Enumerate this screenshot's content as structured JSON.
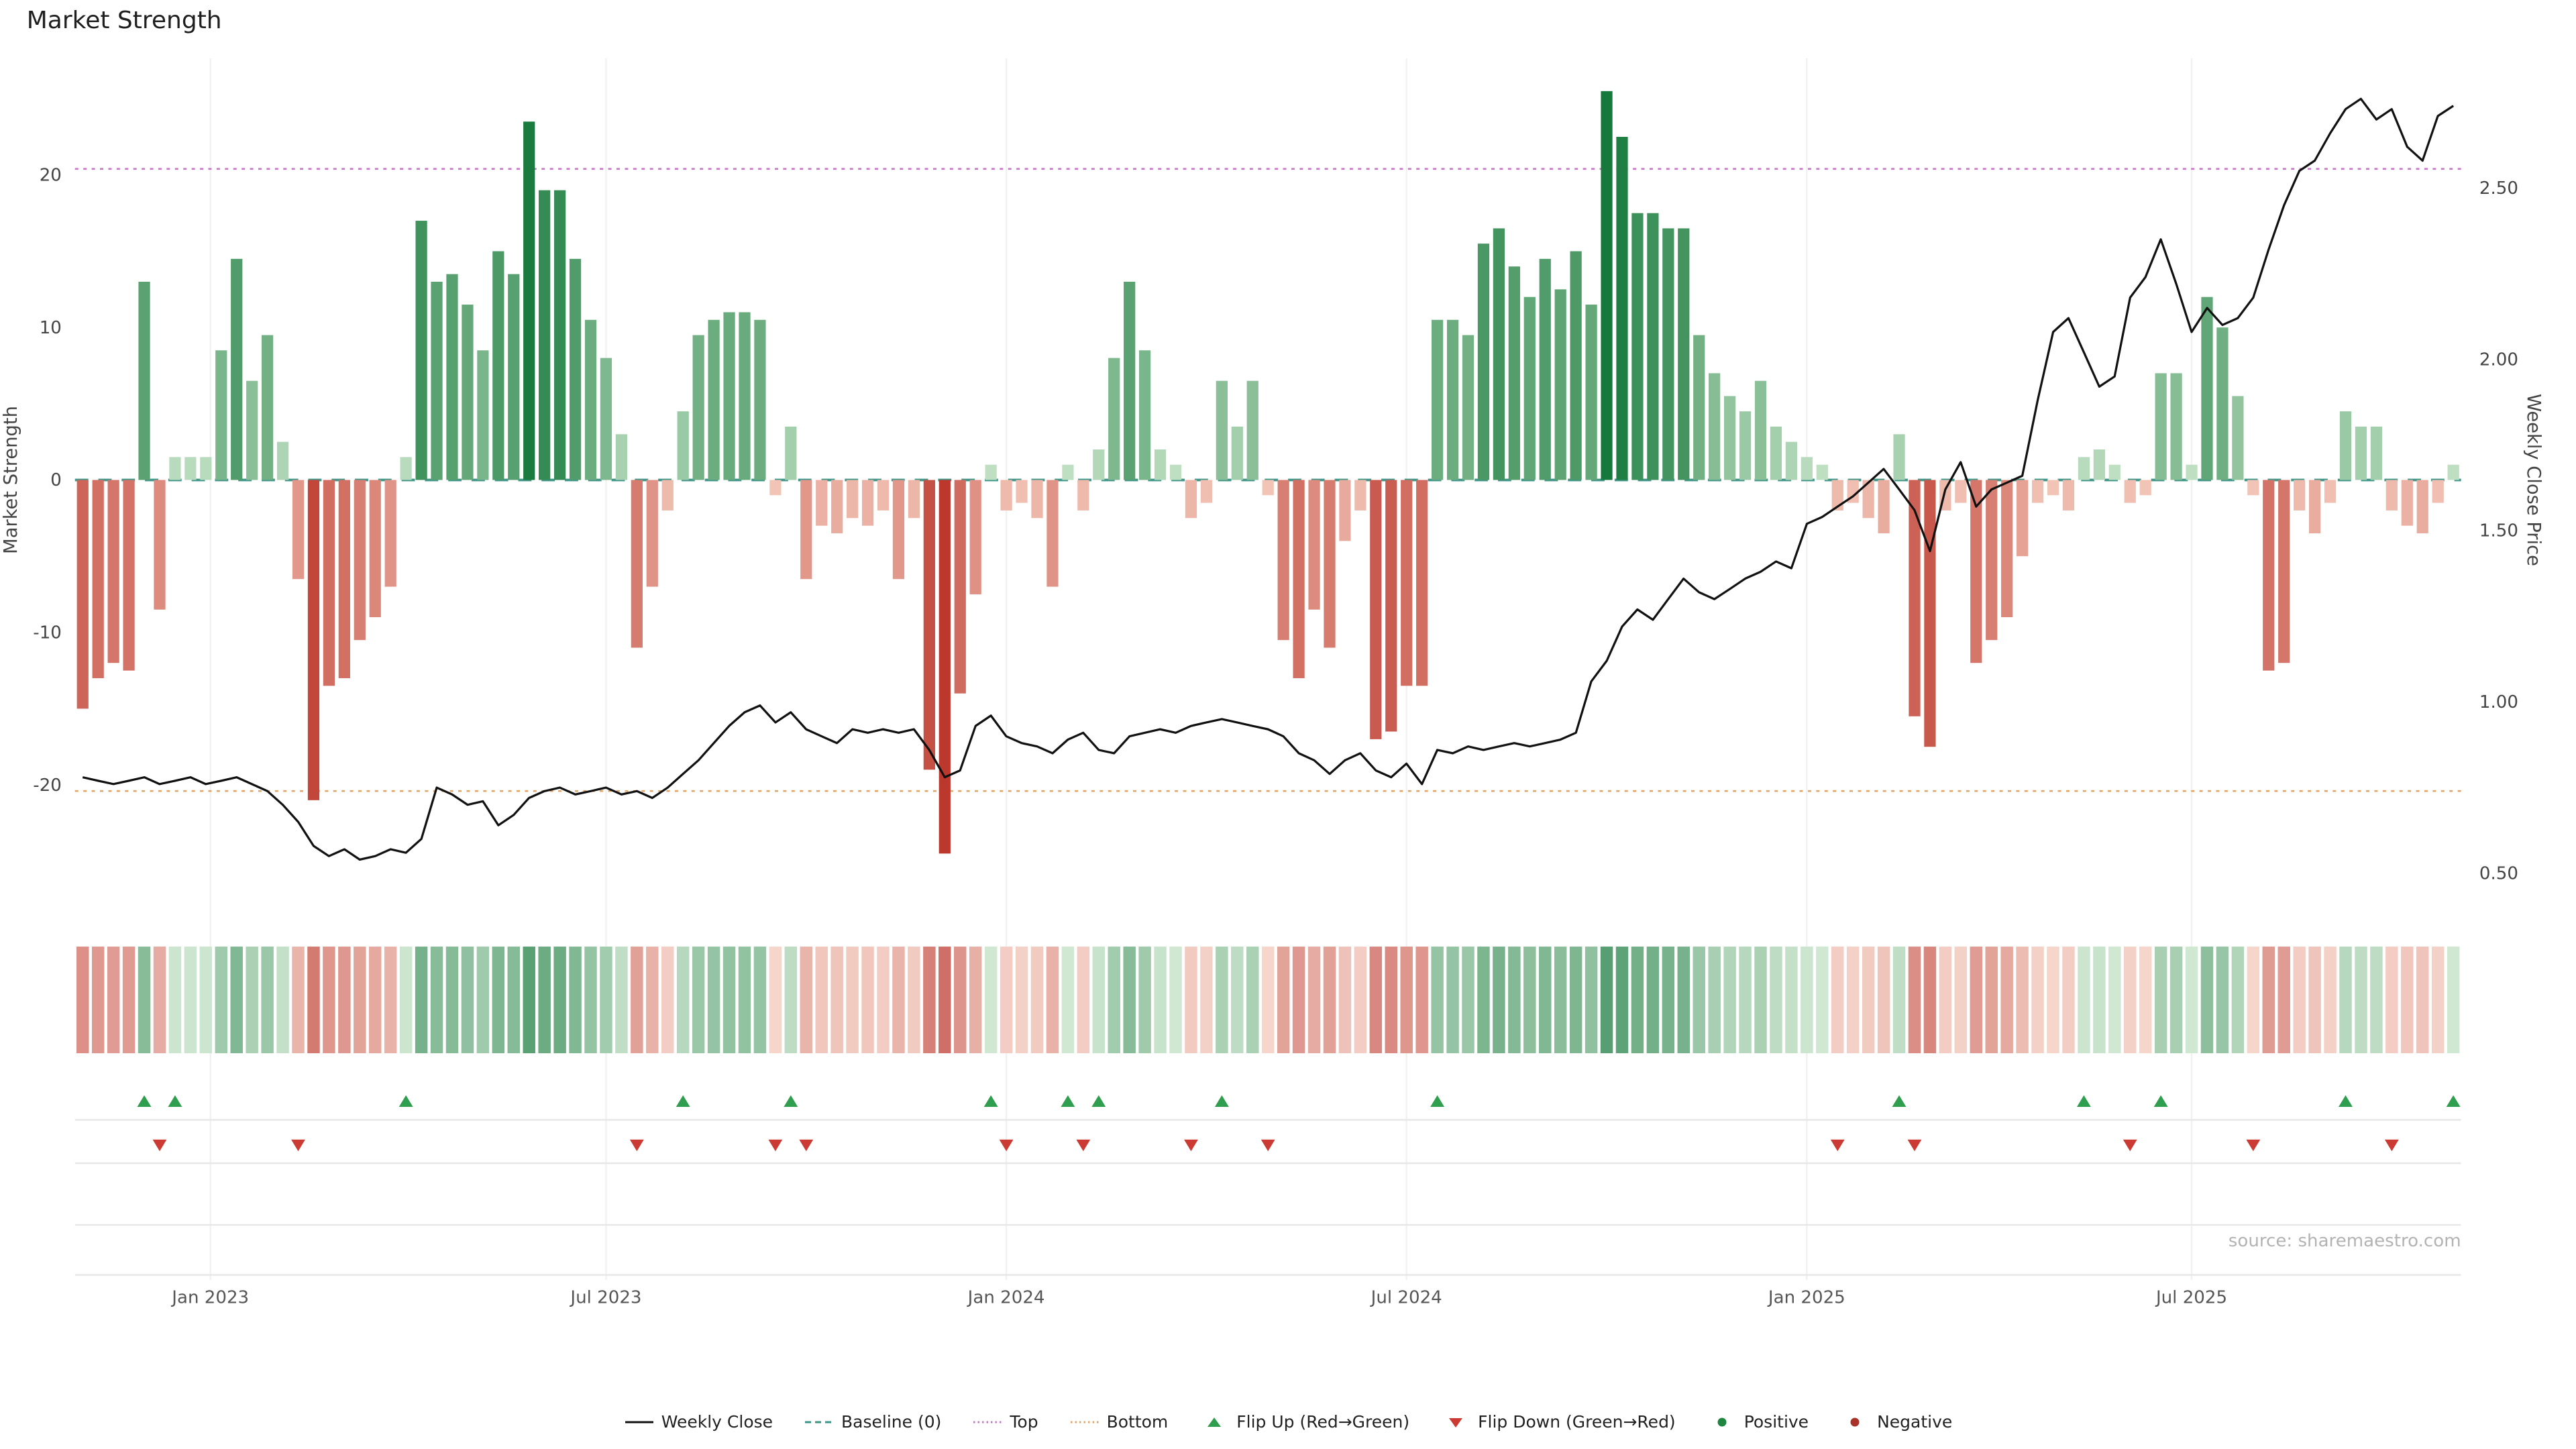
{
  "title": "Market Strength",
  "source_note": "source: sharemaestro.com",
  "chart_data": {
    "type": "bar+line",
    "title": "Market Strength",
    "x_unit": "week",
    "x_range": [
      "Nov 2022",
      "Oct 2025"
    ],
    "x_ticks": [
      {
        "label": "Jan 2023",
        "index": 8.3
      },
      {
        "label": "Jul 2023",
        "index": 34
      },
      {
        "label": "Jan 2024",
        "index": 60
      },
      {
        "label": "Jul 2024",
        "index": 86
      },
      {
        "label": "Jan 2025",
        "index": 112
      },
      {
        "label": "Jul 2025",
        "index": 137
      }
    ],
    "left_axis": {
      "label": "Market Strength",
      "ticks": [
        20,
        10,
        0,
        -10,
        -20
      ],
      "range": [
        -27.5,
        27.7
      ]
    },
    "right_axis": {
      "label": "Weekly Close Price",
      "ticks": [
        "2.50",
        "2.00",
        "1.50",
        "1.00",
        "0.50"
      ],
      "range": [
        0.42,
        2.88
      ]
    },
    "reference_lines": {
      "baseline": 0,
      "top": 20.4,
      "bottom": -20.4
    },
    "series": [
      {
        "name": "Market Strength",
        "type": "bar",
        "values": [
          -15,
          -13,
          -12,
          -12.5,
          13,
          -8.5,
          1.5,
          1.5,
          1.5,
          8.5,
          14.5,
          6.5,
          9.5,
          2.5,
          -6.5,
          -21,
          -13.5,
          -13,
          -10.5,
          -9,
          -7,
          1.5,
          17,
          13,
          13.5,
          11.5,
          8.5,
          15,
          13.5,
          23.5,
          19,
          19,
          14.5,
          10.5,
          8,
          3,
          -11,
          -7,
          -2,
          4.5,
          9.5,
          10.5,
          11,
          11,
          10.5,
          -1,
          3.5,
          -6.5,
          -3,
          -3.5,
          -2.5,
          -3,
          -2,
          -6.5,
          -2.5,
          -19,
          -24.5,
          -14,
          -7.5,
          1,
          -2,
          -1.5,
          -2.5,
          -7,
          1,
          -2,
          2,
          8,
          13,
          8.5,
          2,
          1,
          -2.5,
          -1.5,
          6.5,
          3.5,
          6.5,
          -1,
          -10.5,
          -13,
          -8.5,
          -11,
          -4,
          -2,
          -17,
          -16.5,
          -13.5,
          -13.5,
          10.5,
          10.5,
          9.5,
          15.5,
          16.5,
          14,
          12,
          14.5,
          12.5,
          15,
          11.5,
          25.5,
          22.5,
          17.5,
          17.5,
          16.5,
          16.5,
          9.5,
          7,
          5.5,
          4.5,
          6.5,
          3.5,
          2.5,
          1.5,
          1,
          -2,
          -1.5,
          -2.5,
          -3.5,
          3,
          -15.5,
          -17.5,
          -2,
          -1.5,
          -12,
          -10.5,
          -9,
          -5,
          -1.5,
          -1,
          -2,
          1.5,
          2,
          1,
          -1.5,
          -1,
          7,
          7,
          1,
          12,
          10,
          5.5,
          -1,
          -12.5,
          -12,
          -2,
          -3.5,
          -1.5,
          4.5,
          3.5,
          3.5,
          -2,
          -3,
          -3.5,
          -1.5,
          1
        ]
      },
      {
        "name": "Weekly Close",
        "type": "line",
        "values": [
          0.78,
          0.77,
          0.76,
          0.77,
          0.78,
          0.76,
          0.77,
          0.78,
          0.76,
          0.77,
          0.78,
          0.76,
          0.74,
          0.7,
          0.65,
          0.58,
          0.55,
          0.57,
          0.54,
          0.55,
          0.57,
          0.56,
          0.6,
          0.75,
          0.73,
          0.7,
          0.71,
          0.64,
          0.67,
          0.72,
          0.74,
          0.75,
          0.73,
          0.74,
          0.75,
          0.73,
          0.74,
          0.72,
          0.75,
          0.79,
          0.83,
          0.88,
          0.93,
          0.97,
          0.99,
          0.94,
          0.97,
          0.92,
          0.9,
          0.88,
          0.92,
          0.91,
          0.92,
          0.91,
          0.92,
          0.86,
          0.78,
          0.8,
          0.93,
          0.96,
          0.9,
          0.88,
          0.87,
          0.85,
          0.89,
          0.91,
          0.86,
          0.85,
          0.9,
          0.91,
          0.92,
          0.91,
          0.93,
          0.94,
          0.95,
          0.94,
          0.93,
          0.92,
          0.9,
          0.85,
          0.83,
          0.79,
          0.83,
          0.85,
          0.8,
          0.78,
          0.82,
          0.76,
          0.86,
          0.85,
          0.87,
          0.86,
          0.87,
          0.88,
          0.87,
          0.88,
          0.89,
          0.91,
          1.06,
          1.12,
          1.22,
          1.27,
          1.24,
          1.3,
          1.36,
          1.32,
          1.3,
          1.33,
          1.36,
          1.38,
          1.41,
          1.39,
          1.52,
          1.54,
          1.57,
          1.6,
          1.64,
          1.68,
          1.62,
          1.56,
          1.44,
          1.62,
          1.7,
          1.57,
          1.62,
          1.64,
          1.66,
          1.88,
          2.08,
          2.12,
          2.02,
          1.92,
          1.95,
          2.18,
          2.24,
          2.35,
          2.22,
          2.08,
          2.15,
          2.1,
          2.12,
          2.18,
          2.32,
          2.45,
          2.55,
          2.58,
          2.66,
          2.73,
          2.76,
          2.7,
          2.73,
          2.62,
          2.58,
          2.71,
          2.74
        ]
      }
    ],
    "flip_rule": "flip-up marker where Market Strength crosses from negative to positive; flip-down where it crosses positive to negative",
    "legend_position": "bottom-center",
    "grid": "faint vertical gridlines at x ticks"
  },
  "legend": {
    "items": [
      {
        "label": "Weekly Close",
        "symbol": "solid-line",
        "color": "#111111",
        "slug": "weekly-close"
      },
      {
        "label": "Baseline (0)",
        "symbol": "dashed-line",
        "color": "#3f9488",
        "slug": "baseline"
      },
      {
        "label": "Top",
        "symbol": "dotted-line",
        "color": "#c879c8",
        "slug": "top"
      },
      {
        "label": "Bottom",
        "symbol": "dotted-line",
        "color": "#e0a66a",
        "slug": "bottom"
      },
      {
        "label": "Flip Up (Red→Green)",
        "symbol": "triangle-up",
        "color": "#2f9e4f",
        "slug": "flip-up"
      },
      {
        "label": "Flip Down (Green→Red)",
        "symbol": "triangle-down",
        "color": "#cc3b33",
        "slug": "flip-down"
      },
      {
        "label": "Positive",
        "symbol": "circle",
        "color": "#1f8540",
        "slug": "positive"
      },
      {
        "label": "Negative",
        "symbol": "circle",
        "color": "#a93328",
        "slug": "negative"
      }
    ]
  },
  "colors": {
    "bar_positive_strong": "#16793b",
    "bar_positive_weak": "#cfe9cf",
    "bar_negative_strong": "#bc372c",
    "bar_negative_weak": "#f7d2c4",
    "price_line": "#111111",
    "baseline": "#3f9488",
    "top_line": "#c879c8",
    "bottom_line": "#e0a66a",
    "grid": "#f1f1f1",
    "rule": "#e7e7e7",
    "flip_up": "#2f9e4f",
    "flip_down": "#cc3b33"
  }
}
